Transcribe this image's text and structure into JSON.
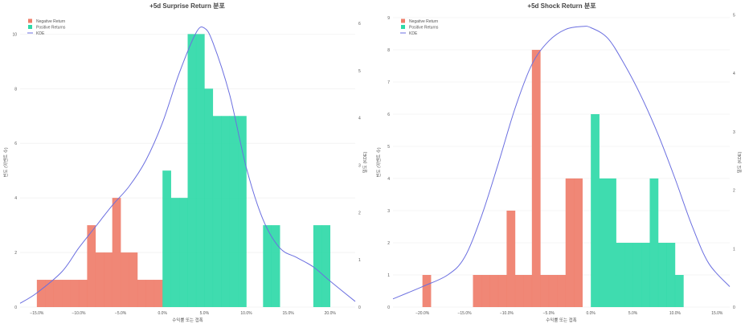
{
  "colors": {
    "negative": "#EF7D6A",
    "positive": "#2FD9A8",
    "kde": "#6B6FE0",
    "grid": "#ECECEC",
    "text": "#555555",
    "title": "#444444"
  },
  "chart_data": [
    {
      "type": "bar",
      "title": "+5d Surprise Return 분포",
      "xlabel": "수익률 또는 갭폭",
      "ylabel": "빈도 (이벤트 수)",
      "y2label": "밀도 (KDE)",
      "xlim": [
        -0.17,
        0.23
      ],
      "ylim": [
        0,
        10.6
      ],
      "y2lim": [
        0,
        6.12
      ],
      "xticks": [
        -0.15,
        -0.1,
        -0.05,
        0.0,
        0.05,
        0.1,
        0.15,
        0.2
      ],
      "xtick_labels": [
        "−15.0%",
        "−10.0%",
        "−5.0%",
        "0.0%",
        "5.0%",
        "10.0%",
        "15.0%",
        "20.0%"
      ],
      "yticks": [
        0,
        2,
        4,
        6,
        8,
        10
      ],
      "ytick_labels": [
        "0",
        "2",
        "4",
        "6",
        "8",
        "10"
      ],
      "y2ticks": [
        0,
        1,
        2,
        3,
        4,
        5,
        6
      ],
      "y2tick_labels": [
        "0",
        "1",
        "2",
        "3",
        "4",
        "5",
        "6"
      ],
      "legend": {
        "position": "top-left",
        "entries": [
          "Negative Return",
          "Positive Returns",
          "KDE"
        ]
      },
      "series": [
        {
          "name": "Negative Return",
          "bins": [
            {
              "x0": -0.15,
              "x1": -0.14,
              "count": 1
            },
            {
              "x0": -0.14,
              "x1": -0.13,
              "count": 1
            },
            {
              "x0": -0.13,
              "x1": -0.12,
              "count": 1
            },
            {
              "x0": -0.12,
              "x1": -0.11,
              "count": 1
            },
            {
              "x0": -0.11,
              "x1": -0.1,
              "count": 1
            },
            {
              "x0": -0.1,
              "x1": -0.09,
              "count": 1
            },
            {
              "x0": -0.09,
              "x1": -0.08,
              "count": 3
            },
            {
              "x0": -0.08,
              "x1": -0.07,
              "count": 2
            },
            {
              "x0": -0.07,
              "x1": -0.06,
              "count": 2
            },
            {
              "x0": -0.06,
              "x1": -0.05,
              "count": 4
            },
            {
              "x0": -0.05,
              "x1": -0.04,
              "count": 2
            },
            {
              "x0": -0.04,
              "x1": -0.03,
              "count": 2
            },
            {
              "x0": -0.03,
              "x1": -0.02,
              "count": 1
            },
            {
              "x0": -0.02,
              "x1": -0.01,
              "count": 1
            },
            {
              "x0": -0.01,
              "x1": 0.0,
              "count": 1
            }
          ]
        },
        {
          "name": "Positive Returns",
          "bins": [
            {
              "x0": 0.0,
              "x1": 0.01,
              "count": 5
            },
            {
              "x0": 0.01,
              "x1": 0.02,
              "count": 4
            },
            {
              "x0": 0.02,
              "x1": 0.03,
              "count": 4
            },
            {
              "x0": 0.03,
              "x1": 0.04,
              "count": 10
            },
            {
              "x0": 0.04,
              "x1": 0.05,
              "count": 10
            },
            {
              "x0": 0.05,
              "x1": 0.06,
              "count": 8
            },
            {
              "x0": 0.06,
              "x1": 0.07,
              "count": 7
            },
            {
              "x0": 0.07,
              "x1": 0.08,
              "count": 7
            },
            {
              "x0": 0.08,
              "x1": 0.09,
              "count": 7
            },
            {
              "x0": 0.09,
              "x1": 0.1,
              "count": 7
            },
            {
              "x0": 0.12,
              "x1": 0.13,
              "count": 3
            },
            {
              "x0": 0.13,
              "x1": 0.14,
              "count": 3
            },
            {
              "x0": 0.18,
              "x1": 0.19,
              "count": 3
            },
            {
              "x0": 0.19,
              "x1": 0.2,
              "count": 3
            }
          ]
        }
      ],
      "kde": {
        "name": "KDE",
        "x": [
          -0.17,
          -0.15,
          -0.12,
          -0.1,
          -0.08,
          -0.06,
          -0.04,
          -0.02,
          0.0,
          0.02,
          0.04,
          0.05,
          0.06,
          0.08,
          0.1,
          0.12,
          0.14,
          0.16,
          0.18,
          0.2,
          0.23
        ],
        "y": [
          0.08,
          0.3,
          0.75,
          1.25,
          1.7,
          2.15,
          2.55,
          3.1,
          3.9,
          4.95,
          5.8,
          5.9,
          5.6,
          4.5,
          2.95,
          1.85,
          1.25,
          1.05,
          0.85,
          0.55,
          0.12
        ]
      }
    },
    {
      "type": "bar",
      "title": "+5d Shock Return 분포",
      "xlabel": "수익률 또는 갭폭",
      "ylabel": "빈도 (이벤트 수)",
      "y2label": "밀도 (KDE)",
      "xlim": [
        -0.235,
        0.165
      ],
      "ylim": [
        0,
        9.0
      ],
      "y2lim": [
        0,
        4.95
      ],
      "xticks": [
        -0.2,
        -0.15,
        -0.1,
        -0.05,
        0.0,
        0.05,
        0.1,
        0.15
      ],
      "xtick_labels": [
        "−20.0%",
        "−15.0%",
        "−10.0%",
        "−5.0%",
        "0.0%",
        "5.0%",
        "10.0%",
        "15.0%"
      ],
      "yticks": [
        0,
        1,
        2,
        3,
        4,
        5,
        6,
        7,
        8,
        9
      ],
      "ytick_labels": [
        "0",
        "1",
        "2",
        "3",
        "4",
        "5",
        "6",
        "7",
        "8",
        "9"
      ],
      "y2ticks": [
        0,
        1,
        2,
        3,
        4,
        5
      ],
      "y2tick_labels": [
        "0",
        "1",
        "2",
        "3",
        "4",
        "5"
      ],
      "legend": {
        "position": "top-left",
        "entries": [
          "Negative Return",
          "Positive Returns",
          "KDE"
        ]
      },
      "series": [
        {
          "name": "Negative Return",
          "bins": [
            {
              "x0": -0.2,
              "x1": -0.19,
              "count": 1
            },
            {
              "x0": -0.14,
              "x1": -0.13,
              "count": 1
            },
            {
              "x0": -0.13,
              "x1": -0.12,
              "count": 1
            },
            {
              "x0": -0.12,
              "x1": -0.11,
              "count": 1
            },
            {
              "x0": -0.11,
              "x1": -0.1,
              "count": 1
            },
            {
              "x0": -0.1,
              "x1": -0.09,
              "count": 3
            },
            {
              "x0": -0.09,
              "x1": -0.08,
              "count": 1
            },
            {
              "x0": -0.08,
              "x1": -0.07,
              "count": 1
            },
            {
              "x0": -0.07,
              "x1": -0.06,
              "count": 8
            },
            {
              "x0": -0.06,
              "x1": -0.05,
              "count": 1
            },
            {
              "x0": -0.05,
              "x1": -0.04,
              "count": 1
            },
            {
              "x0": -0.04,
              "x1": -0.03,
              "count": 1
            },
            {
              "x0": -0.03,
              "x1": -0.02,
              "count": 4
            },
            {
              "x0": -0.02,
              "x1": -0.01,
              "count": 4
            }
          ]
        },
        {
          "name": "Positive Returns",
          "bins": [
            {
              "x0": 0.0,
              "x1": 0.01,
              "count": 6
            },
            {
              "x0": 0.01,
              "x1": 0.02,
              "count": 4
            },
            {
              "x0": 0.02,
              "x1": 0.03,
              "count": 4
            },
            {
              "x0": 0.03,
              "x1": 0.04,
              "count": 2
            },
            {
              "x0": 0.04,
              "x1": 0.05,
              "count": 2
            },
            {
              "x0": 0.05,
              "x1": 0.06,
              "count": 2
            },
            {
              "x0": 0.06,
              "x1": 0.07,
              "count": 2
            },
            {
              "x0": 0.07,
              "x1": 0.08,
              "count": 4
            },
            {
              "x0": 0.08,
              "x1": 0.09,
              "count": 2
            },
            {
              "x0": 0.09,
              "x1": 0.1,
              "count": 2
            },
            {
              "x0": 0.1,
              "x1": 0.11,
              "count": 1
            }
          ]
        }
      ],
      "kde": {
        "name": "KDE",
        "x": [
          -0.235,
          -0.2,
          -0.17,
          -0.15,
          -0.13,
          -0.11,
          -0.09,
          -0.07,
          -0.05,
          -0.03,
          -0.01,
          0.0,
          0.02,
          0.04,
          0.06,
          0.08,
          0.1,
          0.12,
          0.14,
          0.165
        ],
        "y": [
          0.14,
          0.35,
          0.55,
          0.85,
          1.55,
          2.45,
          3.4,
          4.15,
          4.55,
          4.75,
          4.8,
          4.78,
          4.6,
          4.15,
          3.6,
          2.95,
          2.2,
          1.4,
          0.75,
          0.35
        ]
      }
    }
  ]
}
